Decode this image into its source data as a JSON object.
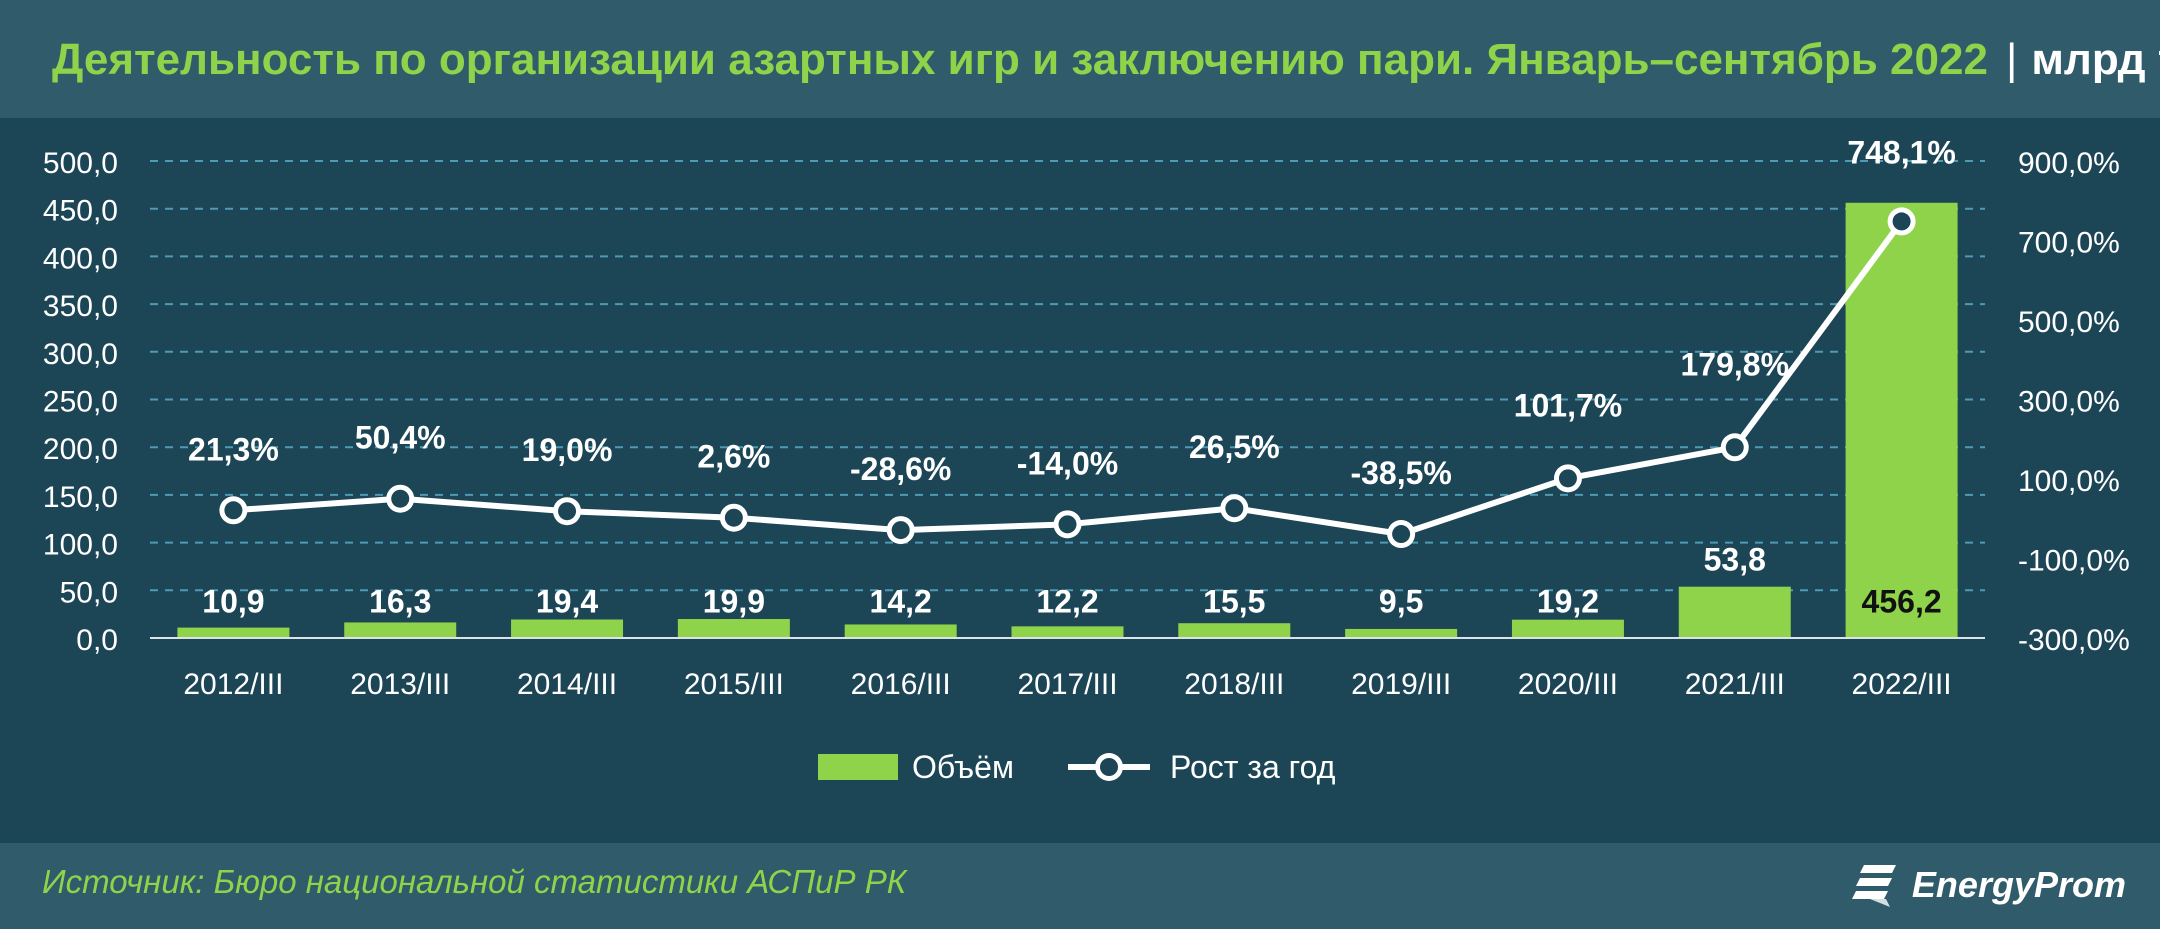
{
  "header": {
    "title": "Деятельность по организации азартных игр и заключению пари. Январь–сентябрь 2022",
    "separator": "|",
    "unit": "млрд тг"
  },
  "footer": {
    "source": "Источник: Бюро национальной статистики АСПиР РК",
    "logo_text": "EnergyProm",
    "logo_icon": "energyprom-logo-icon"
  },
  "colors": {
    "bar": "#8fd34a",
    "line": "#ffffff",
    "panel_bg": "#1c4556",
    "frame_bg": "#2f5b6a",
    "grid": "#4f9bb5"
  },
  "chart_data": {
    "type": "bar",
    "categories": [
      "2012/III",
      "2013/III",
      "2014/III",
      "2015/III",
      "2016/III",
      "2017/III",
      "2018/III",
      "2019/III",
      "2020/III",
      "2021/III",
      "2022/III"
    ],
    "series": [
      {
        "name": "Объём",
        "type": "bar",
        "axis": "left",
        "values": [
          10.9,
          16.3,
          19.4,
          19.9,
          14.2,
          12.2,
          15.5,
          9.5,
          19.2,
          53.8,
          456.2
        ],
        "labels": [
          "10,9",
          "16,3",
          "19,4",
          "19,9",
          "14,2",
          "12,2",
          "15,5",
          "9,5",
          "19,2",
          "53,8",
          "456,2"
        ]
      },
      {
        "name": "Рост за год",
        "type": "line",
        "axis": "right",
        "values": [
          21.3,
          50.4,
          19.0,
          2.6,
          -28.6,
          -14.0,
          26.5,
          -38.5,
          101.7,
          179.8,
          748.1
        ],
        "labels": [
          "21,3%",
          "50,4%",
          "19,0%",
          "2,6%",
          "-28,6%",
          "-14,0%",
          "26,5%",
          "-38,5%",
          "101,7%",
          "179,8%",
          "748,1%"
        ]
      }
    ],
    "y_left": {
      "range": [
        0,
        500
      ],
      "ticks": [
        0,
        50,
        100,
        150,
        200,
        250,
        300,
        350,
        400,
        450,
        500
      ],
      "tick_labels": [
        "0,0",
        "50,0",
        "100,0",
        "150,0",
        "200,0",
        "250,0",
        "300,0",
        "350,0",
        "400,0",
        "450,0",
        "500,0"
      ]
    },
    "y_right": {
      "range": [
        -300,
        900
      ],
      "ticks": [
        -300,
        -100,
        100,
        300,
        500,
        700,
        900
      ],
      "tick_labels": [
        "-300,0%",
        "-100,0%",
        "100,0%",
        "300,0%",
        "500,0%",
        "700,0%",
        "900,0%"
      ]
    },
    "grid": true,
    "legend_position": "bottom"
  }
}
